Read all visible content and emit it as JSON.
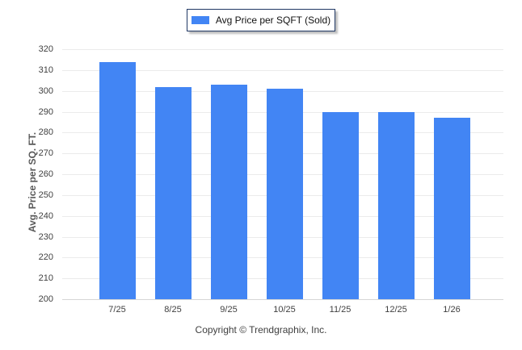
{
  "chart_data": {
    "type": "bar",
    "title": "Avg Price per SQFT (Sold)",
    "legend_label": "Avg Price per SQFT (Sold)",
    "legend_position": "top-center",
    "categories": [
      "7/25",
      "8/25",
      "9/25",
      "10/25",
      "11/25",
      "12/25",
      "1/26"
    ],
    "values": [
      314,
      302,
      303,
      301,
      290,
      290,
      287
    ],
    "xlabel": "",
    "ylabel": "Avg. Price per SQ. FT.",
    "ylim": [
      200,
      320
    ],
    "ytick_step": 10,
    "grid": "horizontal",
    "bar_color": "#4285f4"
  },
  "footer": {
    "copyright": "Copyright © Trendgraphix, Inc."
  },
  "colors": {
    "bar": "#4285f4",
    "gridline": "#ebebeb",
    "axis_line": "#d6d6d6",
    "tick_label": "#3f3f3f",
    "legend_border": "#203864",
    "background": "#ffffff"
  }
}
